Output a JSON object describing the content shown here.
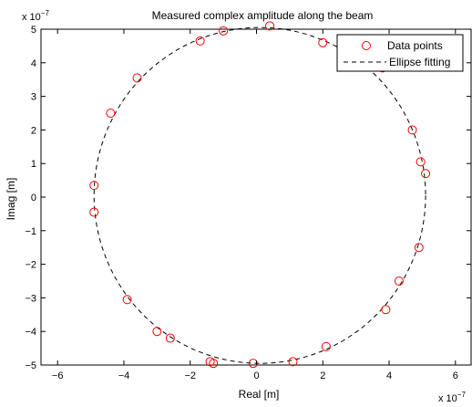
{
  "chart_data": {
    "type": "scatter",
    "title": "Measured complex amplitude along the beam",
    "xlabel": "Real [m]",
    "ylabel": "Imag [m]",
    "xlim": [
      -6.5,
      6.5
    ],
    "ylim": [
      -5,
      5
    ],
    "x_ticks": [
      -6,
      -4,
      -2,
      0,
      2,
      4,
      6
    ],
    "y_ticks": [
      -5,
      -4,
      -3,
      -2,
      -1,
      0,
      1,
      2,
      3,
      4,
      5
    ],
    "x_tick_labels": [
      "−6",
      "−4",
      "−2",
      "0",
      "2",
      "4",
      "6"
    ],
    "y_tick_labels": [
      "−5",
      "−4",
      "−3",
      "−2",
      "−1",
      "0",
      "1",
      "2",
      "3",
      "4",
      "5"
    ],
    "x_exponent": {
      "base": "x 10",
      "power": "−7"
    },
    "y_exponent": {
      "base": "x 10",
      "power": "−7"
    },
    "grid": false,
    "legend_position": "top-right",
    "series": [
      {
        "name": "Data points",
        "kind": "scatter",
        "marker": "circle",
        "color": "#ff0000",
        "x": [
          0.4,
          -1.0,
          -1.7,
          2.0,
          3.8,
          -3.6,
          -4.4,
          4.7,
          4.95,
          5.1,
          -4.9,
          -4.9,
          4.9,
          4.3,
          3.9,
          -3.9,
          -3.0,
          -2.6,
          2.1,
          -1.4,
          -1.3,
          1.1,
          -0.1
        ],
        "y": [
          5.1,
          4.95,
          4.65,
          4.6,
          3.85,
          3.55,
          2.5,
          2.0,
          1.05,
          0.7,
          0.35,
          -0.45,
          -1.5,
          -2.5,
          -3.35,
          -3.05,
          -4.0,
          -4.2,
          -4.45,
          -4.9,
          -4.95,
          -4.9,
          -4.95
        ]
      },
      {
        "name": "Ellipse fitting",
        "kind": "line",
        "style": "dashed",
        "color": "#000000",
        "center": [
          0.1,
          0.05
        ],
        "radius_x": 5.0,
        "radius_y": 5.0
      }
    ]
  }
}
